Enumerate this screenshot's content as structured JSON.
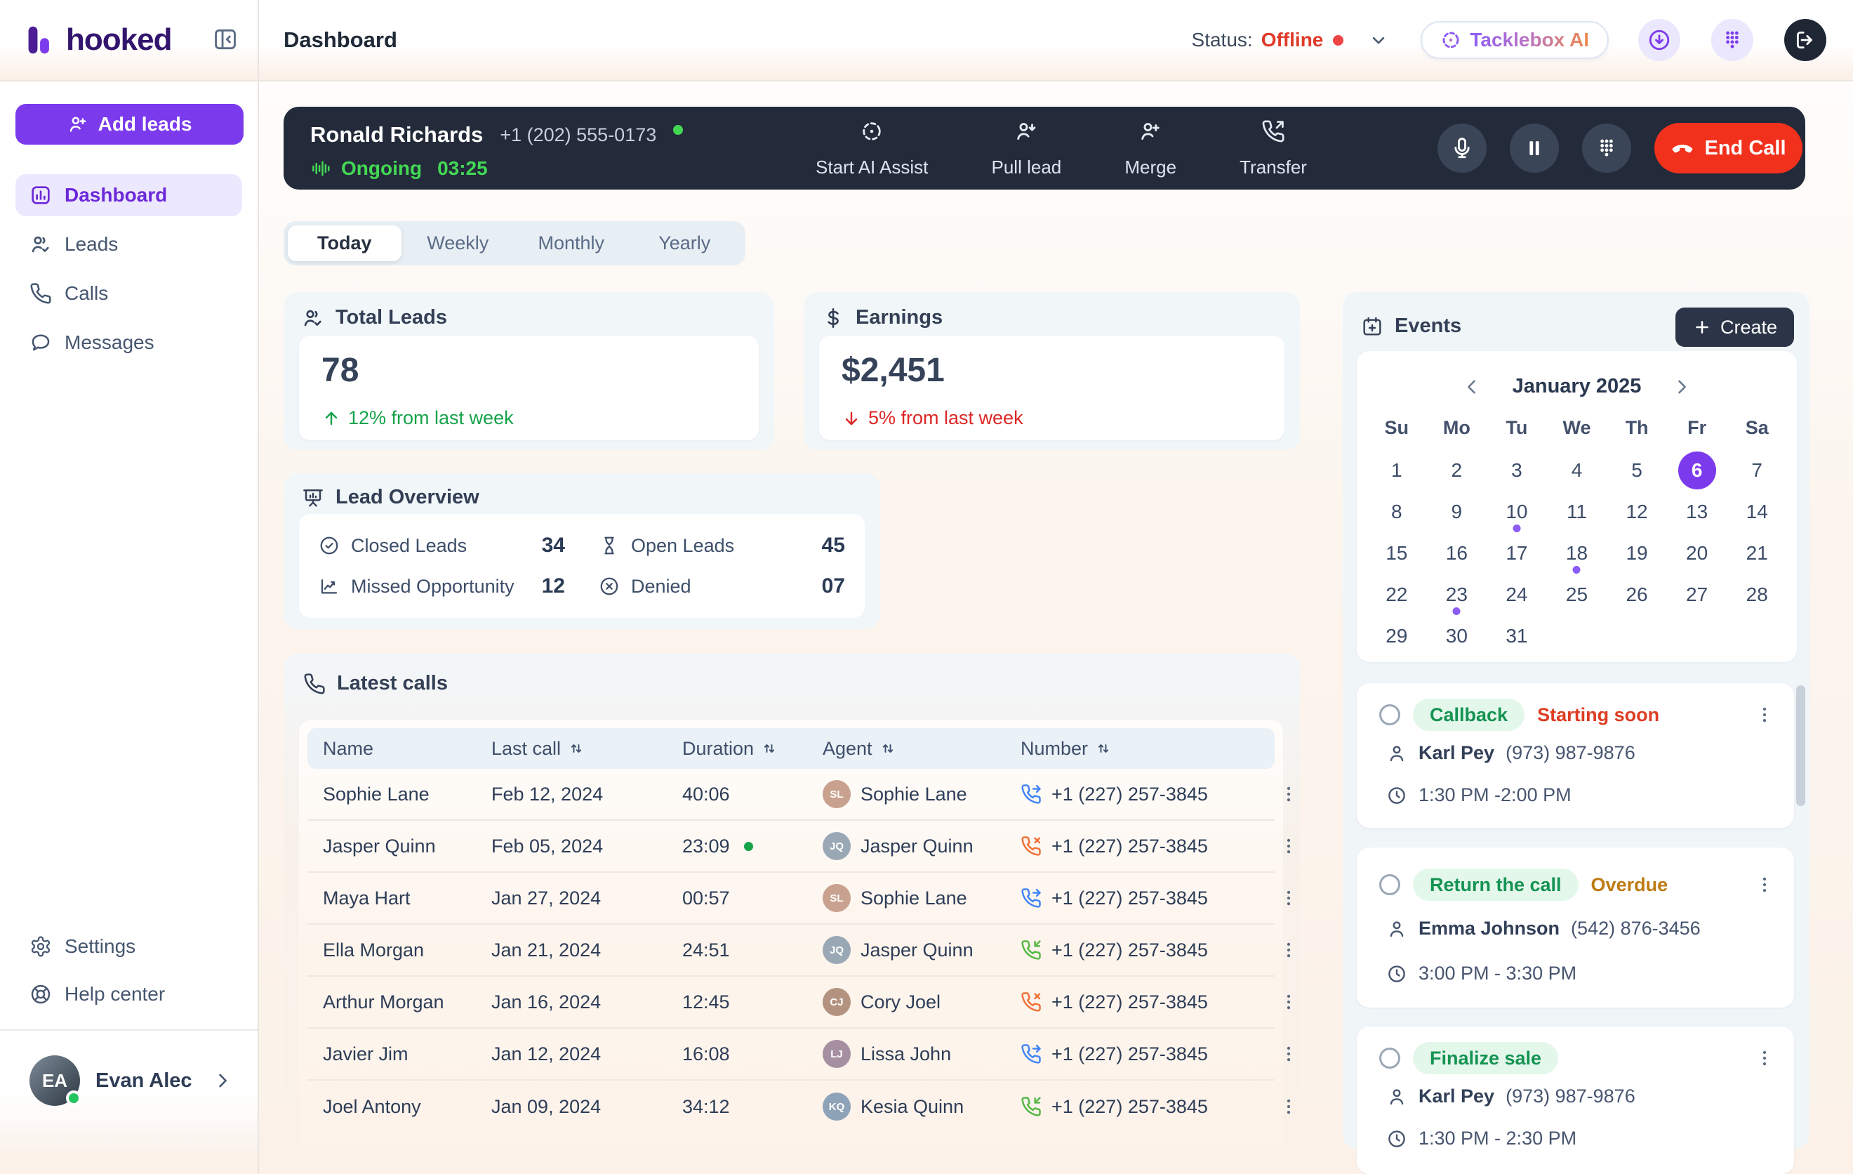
{
  "colors": {
    "accent": "#7c3aed",
    "green": "#16a34a",
    "red": "#dc2626",
    "offline": "#e03a2a",
    "call_forwarded": "#4285f4",
    "call_missed": "#f07137",
    "call_incoming": "#57b846"
  },
  "sidebar": {
    "logo": "hooked",
    "add_leads_label": "Add leads",
    "nav": [
      {
        "label": "Dashboard",
        "icon": "dashboard",
        "active": true
      },
      {
        "label": "Leads",
        "icon": "leads",
        "active": false
      },
      {
        "label": "Calls",
        "icon": "phone",
        "active": false
      },
      {
        "label": "Messages",
        "icon": "messages",
        "active": false
      }
    ],
    "footer_nav": [
      {
        "label": "Settings",
        "icon": "gear"
      },
      {
        "label": "Help center",
        "icon": "lifebuoy"
      }
    ],
    "user": {
      "name": "Evan Alec"
    }
  },
  "topbar": {
    "title": "Dashboard",
    "status_label": "Status:",
    "status_value": "Offline",
    "assistant_label": "Tacklebox AI"
  },
  "callbar": {
    "name": "Ronald Richards",
    "phone": "+1 (202) 555-0173",
    "state": "Ongoing",
    "timer": "03:25",
    "actions": [
      {
        "label": "Start AI Assist",
        "icon": "ai-assist"
      },
      {
        "label": "Pull lead",
        "icon": "user-down"
      },
      {
        "label": "Merge",
        "icon": "user-plus"
      },
      {
        "label": "Transfer",
        "icon": "phone-forward"
      }
    ],
    "end_call_label": "End Call"
  },
  "tabs": {
    "items": [
      "Today",
      "Weekly",
      "Monthly",
      "Yearly"
    ],
    "active": "Today"
  },
  "stats": {
    "total_leads": {
      "title": "Total Leads",
      "icon": "leads",
      "value": "78",
      "delta": "12% from last week",
      "direction": "up"
    },
    "earnings": {
      "title": "Earnings",
      "icon": "dollar",
      "value": "$2,451",
      "delta": "5% from last week",
      "direction": "down"
    }
  },
  "lead_overview": {
    "title": "Lead Overview",
    "items": [
      {
        "label": "Closed Leads",
        "icon": "check-circle",
        "value": "34"
      },
      {
        "label": "Open Leads",
        "icon": "hourglass",
        "value": "45"
      },
      {
        "label": "Missed Opportunity",
        "icon": "trend",
        "value": "12"
      },
      {
        "label": "Denied",
        "icon": "x-circle",
        "value": "07"
      }
    ]
  },
  "latest_calls": {
    "title": "Latest calls",
    "columns": [
      {
        "label": "Name",
        "sortable": false
      },
      {
        "label": "Last call",
        "sortable": true
      },
      {
        "label": "Duration",
        "sortable": true
      },
      {
        "label": "Agent",
        "sortable": true
      },
      {
        "label": "Number",
        "sortable": true
      }
    ],
    "rows": [
      {
        "name": "Sophie Lane",
        "last_call": "Feb 12, 2024",
        "duration": "40:06",
        "duration_dot": false,
        "agent": "Sophie Lane",
        "call_type": "forwarded",
        "number": "+1 (227) 257-3845"
      },
      {
        "name": "Jasper Quinn",
        "last_call": "Feb 05, 2024",
        "duration": "23:09",
        "duration_dot": true,
        "agent": "Jasper Quinn",
        "call_type": "missed",
        "number": "+1 (227) 257-3845"
      },
      {
        "name": "Maya Hart",
        "last_call": "Jan 27, 2024",
        "duration": "00:57",
        "duration_dot": false,
        "agent": "Sophie Lane",
        "call_type": "forwarded",
        "number": "+1 (227) 257-3845"
      },
      {
        "name": "Ella Morgan",
        "last_call": "Jan 21, 2024",
        "duration": "24:51",
        "duration_dot": false,
        "agent": "Jasper Quinn",
        "call_type": "incoming",
        "number": "+1 (227) 257-3845"
      },
      {
        "name": "Arthur Morgan",
        "last_call": "Jan 16, 2024",
        "duration": "12:45",
        "duration_dot": false,
        "agent": "Cory Joel",
        "call_type": "missed",
        "number": "+1 (227) 257-3845"
      },
      {
        "name": "Javier Jim",
        "last_call": "Jan 12, 2024",
        "duration": "16:08",
        "duration_dot": false,
        "agent": "Lissa John",
        "call_type": "forwarded",
        "number": "+1 (227) 257-3845"
      },
      {
        "name": "Joel Antony",
        "last_call": "Jan 09, 2024",
        "duration": "34:12",
        "duration_dot": false,
        "agent": "Kesia Quinn",
        "call_type": "incoming",
        "number": "+1 (227) 257-3845"
      }
    ]
  },
  "events": {
    "title": "Events",
    "create_label": "Create",
    "calendar": {
      "month": "January 2025",
      "weekdays": [
        "Su",
        "Mo",
        "Tu",
        "We",
        "Th",
        "Fr",
        "Sa"
      ],
      "days": 31,
      "selected": 6,
      "dotted": [
        10,
        18,
        23
      ]
    },
    "cards": [
      {
        "tag": "Callback",
        "status": "Starting soon",
        "status_kind": "red",
        "person": "Karl Pey",
        "phone": "(973) 987-9876",
        "time": "1:30 PM -2:00 PM"
      },
      {
        "tag": "Return the call",
        "status": "Overdue",
        "status_kind": "amber",
        "person": "Emma Johnson",
        "phone": "(542) 876-3456",
        "time": "3:00 PM - 3:30 PM"
      },
      {
        "tag": "Finalize sale",
        "status": "",
        "status_kind": "",
        "person": "Karl Pey",
        "phone": "(973) 987-9876",
        "time": "1:30 PM - 2:30 PM"
      }
    ]
  }
}
